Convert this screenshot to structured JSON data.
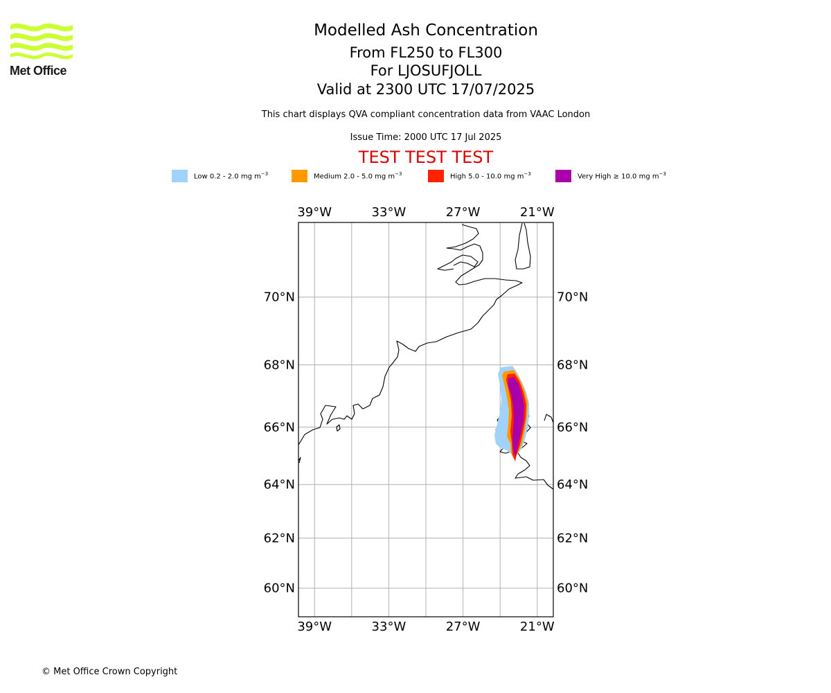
{
  "logo": {
    "text": "Met Office",
    "color": "#ccff33"
  },
  "header": {
    "title": "Modelled Ash Concentration",
    "level_range": "From FL250 to FL300",
    "volcano": "For LJOSUFJOLL",
    "valid_time": "Valid at 2300 UTC 17/07/2025",
    "note": "This chart displays QVA compliant concentration data from VAAC London",
    "issue_time": "Issue Time: 2000 UTC 17 Jul 2025",
    "test_banner": "TEST TEST TEST"
  },
  "legend": {
    "items": [
      {
        "label": "Low 0.2 - 2.0 mg m",
        "unit_exp": "−3",
        "color": "#a0d2fa"
      },
      {
        "label": "Medium 2.0 - 5.0 mg m",
        "unit_exp": "−3",
        "color": "#ff9900"
      },
      {
        "label": "High 5.0 - 10.0 mg m",
        "unit_exp": "−3",
        "color": "#ff2200"
      },
      {
        "label": "Very High  ≥  10.0 mg m",
        "unit_exp": "−3",
        "color": "#aa00aa"
      }
    ]
  },
  "map": {
    "lon_range": [
      -40.3,
      -19.7
    ],
    "lat_range": [
      58.8,
      72.0
    ],
    "lon_ticks": [
      {
        "value": -39,
        "label": "39°W"
      },
      {
        "value": -33,
        "label": "33°W"
      },
      {
        "value": -27,
        "label": "27°W"
      },
      {
        "value": -21,
        "label": "21°W"
      }
    ],
    "lon_grid": [
      -39,
      -36,
      -33,
      -30,
      -27,
      -24,
      -21
    ],
    "lat_ticks": [
      {
        "value": 70,
        "label": "70°N"
      },
      {
        "value": 68,
        "label": "68°N"
      },
      {
        "value": 66,
        "label": "66°N"
      },
      {
        "value": 64,
        "label": "64°N"
      },
      {
        "value": 62,
        "label": "62°N"
      },
      {
        "value": 60,
        "label": "60°N"
      }
    ],
    "gridlines": true,
    "grid_color": "#b0b0b0"
  },
  "footer": {
    "copyright": "© Met Office Crown Copyright"
  }
}
